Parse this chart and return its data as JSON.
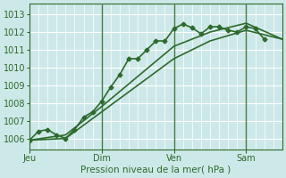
{
  "background_color": "#cde8e8",
  "grid_color_major_h": "#ffffff",
  "grid_color_minor_v": "#ffffff",
  "line_color": "#2d6a2d",
  "vline_color": "#4a7a4a",
  "xlabel": "Pression niveau de la mer( hPa )",
  "x_ticks": [
    0,
    48,
    96,
    144
  ],
  "x_tick_labels": [
    "Jeu",
    "Dim",
    "Ven",
    "Sam"
  ],
  "ylim": [
    1005.4,
    1013.6
  ],
  "yticks": [
    1006,
    1007,
    1008,
    1009,
    1010,
    1011,
    1012,
    1013
  ],
  "series": [
    {
      "x": [
        0,
        6,
        12,
        18,
        24,
        30,
        36,
        42,
        48,
        54,
        60,
        66,
        72,
        78,
        84,
        90,
        96,
        102,
        108,
        114,
        120,
        126,
        132,
        138,
        144,
        150,
        156
      ],
      "y": [
        1005.9,
        1006.4,
        1006.5,
        1006.2,
        1006.0,
        1006.5,
        1007.2,
        1007.5,
        1008.1,
        1008.9,
        1009.6,
        1010.5,
        1010.5,
        1011.0,
        1011.5,
        1011.5,
        1012.2,
        1012.45,
        1012.25,
        1011.9,
        1012.3,
        1012.3,
        1012.1,
        1012.0,
        1012.3,
        1012.2,
        1011.6
      ],
      "marker": "D",
      "linewidth": 1.2,
      "markersize": 2.5
    },
    {
      "x": [
        0,
        24,
        48,
        72,
        96,
        120,
        144,
        168
      ],
      "y": [
        1005.9,
        1006.0,
        1007.5,
        1009.0,
        1010.5,
        1011.5,
        1012.1,
        1011.6
      ],
      "marker": null,
      "linewidth": 1.2
    },
    {
      "x": [
        0,
        24,
        48,
        72,
        96,
        120,
        144,
        168
      ],
      "y": [
        1005.9,
        1006.2,
        1007.8,
        1009.5,
        1011.2,
        1012.0,
        1012.5,
        1011.6
      ],
      "marker": null,
      "linewidth": 1.2
    }
  ],
  "vlines": [
    48,
    96,
    144
  ],
  "minor_v_positions": [
    6,
    12,
    18,
    24,
    30,
    36,
    42,
    54,
    60,
    66,
    72,
    78,
    84,
    90,
    102,
    108,
    114,
    120,
    126,
    132,
    138,
    150,
    156,
    162,
    168
  ],
  "xlim": [
    0,
    168
  ],
  "figsize": [
    3.2,
    2.0
  ],
  "dpi": 100
}
